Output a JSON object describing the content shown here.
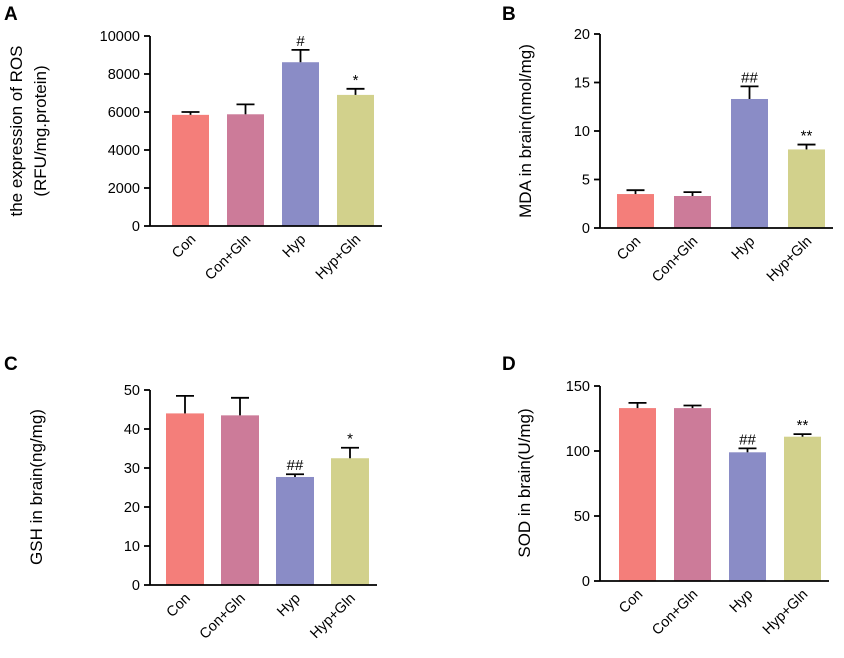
{
  "colors": [
    "#f47e7a",
    "#cc7b99",
    "#8a8cc6",
    "#d2d18c"
  ],
  "chart_data": [
    {
      "panel": "A",
      "type": "bar",
      "categories": [
        "Con",
        "Con+Gln",
        "Hyp",
        "Hyp+Gln"
      ],
      "values": [
        5850,
        5880,
        8620,
        6900
      ],
      "errors": [
        150,
        520,
        650,
        320
      ],
      "significance": [
        "",
        "",
        "#",
        "*"
      ],
      "ylabel_lines": [
        "the expression of ROS",
        "(RFU/mg.protein)"
      ],
      "ylim": [
        0,
        10000
      ],
      "yticks": [
        0,
        2000,
        4000,
        6000,
        8000,
        10000
      ]
    },
    {
      "panel": "B",
      "type": "bar",
      "categories": [
        "Con",
        "Con+Gln",
        "Hyp",
        "Hyp+Gln"
      ],
      "values": [
        3.5,
        3.3,
        13.3,
        8.1
      ],
      "errors": [
        0.4,
        0.4,
        1.3,
        0.5
      ],
      "significance": [
        "",
        "",
        "##",
        "**"
      ],
      "ylabel_lines": [
        "MDA in brain(nmol/mg)"
      ],
      "ylim": [
        0,
        20
      ],
      "yticks": [
        0,
        5,
        10,
        15,
        20
      ]
    },
    {
      "panel": "C",
      "type": "bar",
      "categories": [
        "Con",
        "Con+Gln",
        "Hyp",
        "Hyp+Gln"
      ],
      "values": [
        44.0,
        43.5,
        27.7,
        32.5
      ],
      "errors": [
        4.5,
        4.5,
        0.7,
        2.7
      ],
      "significance": [
        "",
        "",
        "##",
        "*"
      ],
      "ylabel_lines": [
        "GSH in brain(ng/mg)"
      ],
      "ylim": [
        0,
        50
      ],
      "yticks": [
        0,
        10,
        20,
        30,
        40,
        50
      ]
    },
    {
      "panel": "D",
      "type": "bar",
      "categories": [
        "Con",
        "Con+Gln",
        "Hyp",
        "Hyp+Gln"
      ],
      "values": [
        133,
        133,
        99,
        111
      ],
      "errors": [
        4,
        2,
        3,
        2
      ],
      "significance": [
        "",
        "",
        "##",
        "**"
      ],
      "ylabel_lines": [
        "SOD in brain(U/mg)"
      ],
      "ylim": [
        0,
        150
      ],
      "yticks": [
        0,
        50,
        100,
        150
      ]
    }
  ]
}
